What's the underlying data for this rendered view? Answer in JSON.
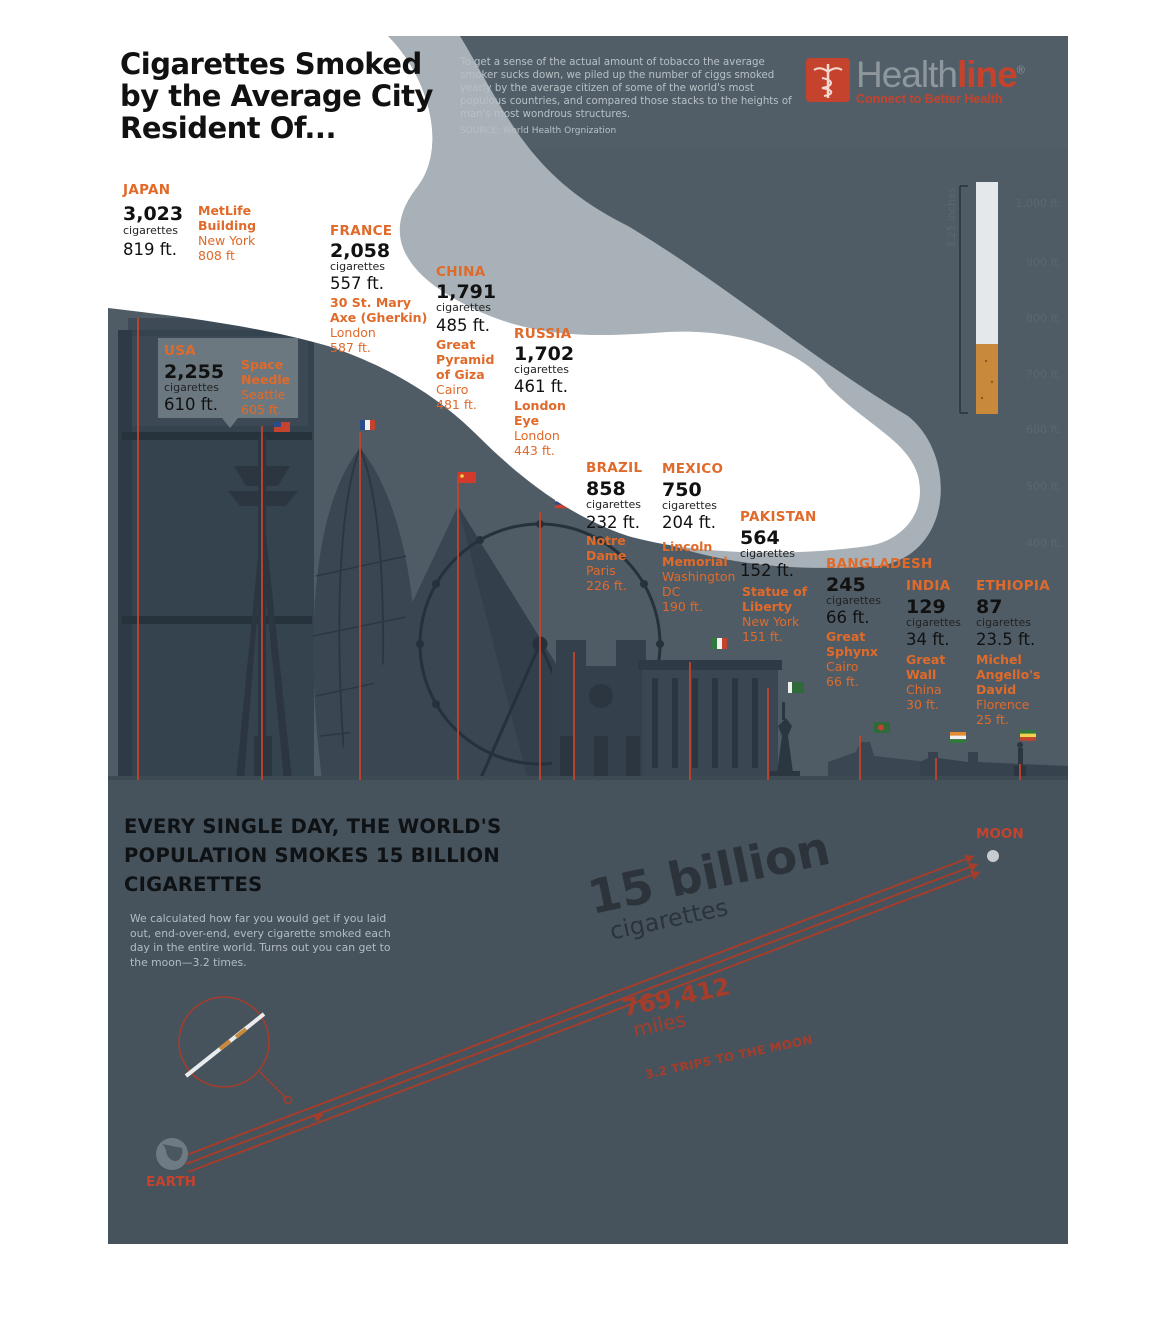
{
  "title": "Cigarettes Smoked by the Average City Resident Of...",
  "intro": {
    "text": "To get a sense of the actual amount of tobacco the average smoker sucks down, we piled up the number of ciggs smoked yearly by the average citizen of some of the world's most populous countries, and compared those stacks to the heights of man's most wondrous structures.",
    "source": "SOURCE: World Health Orgnization"
  },
  "brand": {
    "name_part1": "Health",
    "name_part2": "line",
    "trademark": "®",
    "tagline": "Connect to Better Health",
    "icon": "caduceus-icon"
  },
  "cigarette_unit": "cigarettes",
  "entries": [
    {
      "country": "JAPAN",
      "count": "3,023",
      "height": "819 ft.",
      "landmark": "MetLife Building",
      "city": "New York",
      "landmark_height": "808 ft"
    },
    {
      "country": "USA",
      "count": "2,255",
      "height": "610 ft.",
      "landmark": "Space Needle",
      "city": "Seattle",
      "landmark_height": "605 ft."
    },
    {
      "country": "FRANCE",
      "count": "2,058",
      "height": "557 ft.",
      "landmark": "30 St. Mary Axe (Gherkin)",
      "city": "London",
      "landmark_height": "587 ft."
    },
    {
      "country": "CHINA",
      "count": "1,791",
      "height": "485 ft.",
      "landmark": "Great Pyramid of Giza",
      "city": "Cairo",
      "landmark_height": "481 ft."
    },
    {
      "country": "RUSSIA",
      "count": "1,702",
      "height": "461 ft.",
      "landmark": "London Eye",
      "city": "London",
      "landmark_height": "443 ft."
    },
    {
      "country": "BRAZIL",
      "count": "858",
      "height": "232 ft.",
      "landmark": "Notre Dame",
      "city": "Paris",
      "landmark_height": "226 ft."
    },
    {
      "country": "MEXICO",
      "count": "750",
      "height": "204 ft.",
      "landmark": "Lincoln Memorial",
      "city": "Washington DC",
      "landmark_height": "190 ft."
    },
    {
      "country": "PAKISTAN",
      "count": "564",
      "height": "152 ft.",
      "landmark": "Statue of Liberty",
      "city": "New York",
      "landmark_height": "151 ft."
    },
    {
      "country": "BANGLADESH",
      "count": "245",
      "height": "66 ft.",
      "landmark": "Great Sphynx",
      "city": "Cairo",
      "landmark_height": "66 ft."
    },
    {
      "country": "INDIA",
      "count": "129",
      "height": "34 ft.",
      "landmark": "Great Wall",
      "city": "China",
      "landmark_height": "30 ft."
    },
    {
      "country": "ETHIOPIA",
      "count": "87",
      "height": "23.5 ft.",
      "landmark": "Michel Angello's David",
      "city": "Florence",
      "landmark_height": "25 ft."
    }
  ],
  "scale": {
    "cigarette_length": "3.25 inches",
    "labels": [
      "1,000 ft.",
      "900 ft.",
      "800 ft.",
      "700 ft.",
      "600 ft.",
      "500 ft.",
      "400 ft."
    ]
  },
  "daily": {
    "headline": "EVERY SINGLE DAY, THE WORLD'S  POPULATION SMOKES 15 BILLION CIGARETTES",
    "description": "We calculated how far you would get if you laid out, end-over-end, every cigarette smoked each day in the entire world. Turns out you can get to the moon—3.2 times.",
    "big_number": "15 billion",
    "big_unit": "cigarettes",
    "distance": "769,412",
    "distance_unit": "miles",
    "trips": "3.2 TRIPS TO THE MOON",
    "moon_label": "MOON",
    "earth_label": "EARTH"
  },
  "colors": {
    "background": "#46525c",
    "accent_orange": "#e06a2a",
    "accent_red": "#c5432c",
    "smoke": "#a8b1b7",
    "cloud": "#ffffff"
  }
}
